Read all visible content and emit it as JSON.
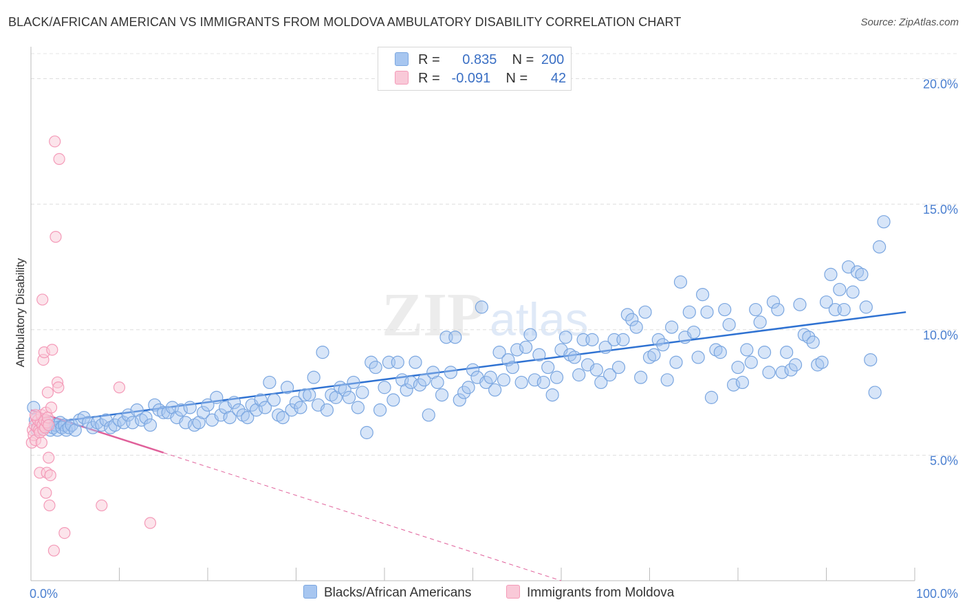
{
  "header": {
    "title": "BLACK/AFRICAN AMERICAN VS IMMIGRANTS FROM MOLDOVA AMBULATORY DISABILITY CORRELATION CHART",
    "source": "Source: ZipAtlas.com"
  },
  "legend": {
    "rows": [
      {
        "r_label": "R =",
        "r_value": "0.835",
        "n_label": "N =",
        "n_value": "200",
        "color": "#a7c6f0"
      },
      {
        "r_label": "R =",
        "r_value": "-0.091",
        "n_label": "N =",
        "n_value": "42",
        "color": "#f6b8cc"
      }
    ]
  },
  "bottom_legend": {
    "series1": "Blacks/African Americans",
    "series2": "Immigrants from Moldova"
  },
  "watermark": "ZIPatlas",
  "chart_data": {
    "type": "scatter",
    "title": "BLACK/AFRICAN AMERICAN VS IMMIGRANTS FROM MOLDOVA AMBULATORY DISABILITY CORRELATION CHART",
    "xlabel": "",
    "ylabel": "Ambulatory Disability",
    "x_tick_labels": [
      "0.0%",
      "100.0%"
    ],
    "y_tick_labels": [
      "5.0%",
      "10.0%",
      "15.0%",
      "20.0%"
    ],
    "xlim": [
      0,
      100
    ],
    "ylim": [
      0,
      20
    ],
    "grid": true,
    "series": [
      {
        "name": "Blacks/African Americans",
        "color": "#7aa6e0",
        "line_color": "#2f72d2",
        "trend": [
          [
            0,
            6.2
          ],
          [
            99,
            10.7
          ]
        ],
        "points": [
          [
            0.3,
            6.9
          ],
          [
            0.5,
            6.4
          ],
          [
            0.7,
            6.0
          ],
          [
            1.0,
            6.2
          ],
          [
            1.3,
            6.1
          ],
          [
            1.5,
            6.3
          ],
          [
            1.8,
            6.2
          ],
          [
            2.0,
            6.3
          ],
          [
            2.2,
            6.0
          ],
          [
            2.5,
            6.1
          ],
          [
            2.8,
            6.2
          ],
          [
            3.0,
            6.0
          ],
          [
            3.3,
            6.3
          ],
          [
            3.5,
            6.1
          ],
          [
            3.8,
            6.2
          ],
          [
            4.0,
            6.0
          ],
          [
            4.3,
            6.1
          ],
          [
            4.6,
            6.2
          ],
          [
            5.0,
            6.0
          ],
          [
            5.5,
            6.4
          ],
          [
            6.0,
            6.5
          ],
          [
            6.5,
            6.3
          ],
          [
            7.0,
            6.1
          ],
          [
            7.5,
            6.3
          ],
          [
            8.0,
            6.2
          ],
          [
            8.5,
            6.4
          ],
          [
            9.0,
            6.1
          ],
          [
            9.5,
            6.2
          ],
          [
            10.0,
            6.4
          ],
          [
            10.5,
            6.3
          ],
          [
            11.0,
            6.6
          ],
          [
            11.5,
            6.3
          ],
          [
            12.0,
            6.8
          ],
          [
            12.5,
            6.4
          ],
          [
            13.0,
            6.5
          ],
          [
            13.5,
            6.2
          ],
          [
            14.0,
            7.0
          ],
          [
            14.5,
            6.8
          ],
          [
            15.0,
            6.7
          ],
          [
            15.5,
            6.7
          ],
          [
            16.0,
            6.9
          ],
          [
            16.5,
            6.5
          ],
          [
            17.0,
            6.8
          ],
          [
            17.5,
            6.3
          ],
          [
            18.0,
            6.9
          ],
          [
            18.5,
            6.2
          ],
          [
            19.0,
            6.3
          ],
          [
            19.5,
            6.7
          ],
          [
            20.0,
            7.0
          ],
          [
            20.5,
            6.4
          ],
          [
            21.0,
            7.3
          ],
          [
            21.5,
            6.6
          ],
          [
            22.0,
            6.9
          ],
          [
            22.5,
            6.5
          ],
          [
            23.0,
            7.1
          ],
          [
            23.5,
            6.8
          ],
          [
            24.0,
            6.6
          ],
          [
            24.5,
            6.5
          ],
          [
            25.0,
            7.0
          ],
          [
            25.5,
            6.8
          ],
          [
            26.0,
            7.2
          ],
          [
            26.5,
            6.9
          ],
          [
            27.0,
            7.9
          ],
          [
            27.5,
            7.2
          ],
          [
            28.0,
            6.6
          ],
          [
            28.5,
            6.5
          ],
          [
            29.0,
            7.7
          ],
          [
            29.5,
            6.8
          ],
          [
            30.0,
            7.1
          ],
          [
            30.5,
            6.9
          ],
          [
            31.0,
            7.4
          ],
          [
            31.5,
            7.4
          ],
          [
            32.0,
            8.1
          ],
          [
            32.5,
            7.0
          ],
          [
            33.0,
            9.1
          ],
          [
            33.5,
            6.8
          ],
          [
            34.0,
            7.4
          ],
          [
            34.5,
            7.3
          ],
          [
            35.0,
            7.7
          ],
          [
            35.5,
            7.6
          ],
          [
            36.0,
            7.3
          ],
          [
            36.5,
            7.9
          ],
          [
            37.0,
            6.9
          ],
          [
            37.5,
            7.5
          ],
          [
            38.0,
            5.9
          ],
          [
            38.5,
            8.7
          ],
          [
            39.0,
            8.5
          ],
          [
            39.5,
            6.8
          ],
          [
            40.0,
            7.7
          ],
          [
            40.5,
            8.7
          ],
          [
            41.0,
            7.2
          ],
          [
            41.5,
            8.7
          ],
          [
            42.0,
            8.0
          ],
          [
            42.5,
            7.6
          ],
          [
            43.0,
            7.9
          ],
          [
            43.5,
            8.7
          ],
          [
            44.0,
            7.8
          ],
          [
            44.5,
            8.0
          ],
          [
            45.0,
            6.6
          ],
          [
            45.5,
            8.3
          ],
          [
            46.0,
            7.9
          ],
          [
            46.5,
            7.4
          ],
          [
            47.0,
            9.7
          ],
          [
            47.5,
            8.3
          ],
          [
            48.0,
            9.7
          ],
          [
            48.5,
            7.2
          ],
          [
            49.0,
            7.5
          ],
          [
            49.5,
            7.7
          ],
          [
            50.0,
            8.4
          ],
          [
            50.5,
            8.1
          ],
          [
            51.0,
            10.9
          ],
          [
            51.5,
            7.9
          ],
          [
            52.0,
            8.1
          ],
          [
            52.5,
            7.6
          ],
          [
            53.0,
            9.1
          ],
          [
            53.5,
            8.0
          ],
          [
            54.0,
            8.8
          ],
          [
            54.5,
            8.5
          ],
          [
            55.0,
            9.2
          ],
          [
            55.5,
            7.9
          ],
          [
            56.0,
            9.3
          ],
          [
            56.5,
            9.8
          ],
          [
            57.0,
            8.0
          ],
          [
            57.5,
            9.0
          ],
          [
            58.0,
            7.9
          ],
          [
            58.5,
            8.5
          ],
          [
            59.0,
            7.4
          ],
          [
            59.5,
            8.1
          ],
          [
            60.0,
            9.2
          ],
          [
            60.5,
            9.7
          ],
          [
            61.0,
            9.0
          ],
          [
            61.5,
            8.9
          ],
          [
            62.0,
            8.2
          ],
          [
            62.5,
            9.6
          ],
          [
            63.0,
            8.6
          ],
          [
            63.5,
            9.6
          ],
          [
            64.0,
            8.4
          ],
          [
            64.5,
            7.9
          ],
          [
            65.0,
            9.3
          ],
          [
            65.5,
            8.2
          ],
          [
            66.0,
            9.6
          ],
          [
            66.5,
            8.5
          ],
          [
            67.0,
            9.6
          ],
          [
            67.5,
            10.6
          ],
          [
            68.0,
            10.4
          ],
          [
            68.5,
            10.1
          ],
          [
            69.0,
            8.1
          ],
          [
            69.5,
            10.7
          ],
          [
            70.0,
            8.9
          ],
          [
            70.5,
            9.0
          ],
          [
            71.0,
            9.6
          ],
          [
            71.5,
            9.4
          ],
          [
            72.0,
            8.0
          ],
          [
            72.5,
            10.1
          ],
          [
            73.0,
            8.7
          ],
          [
            73.5,
            11.9
          ],
          [
            74.0,
            9.7
          ],
          [
            74.5,
            10.7
          ],
          [
            75.0,
            9.9
          ],
          [
            75.5,
            8.9
          ],
          [
            76.0,
            11.4
          ],
          [
            76.5,
            10.7
          ],
          [
            77.0,
            7.3
          ],
          [
            77.5,
            9.2
          ],
          [
            78.0,
            9.1
          ],
          [
            78.5,
            10.8
          ],
          [
            79.0,
            10.2
          ],
          [
            79.5,
            7.8
          ],
          [
            80.0,
            8.5
          ],
          [
            80.5,
            7.9
          ],
          [
            81.0,
            9.2
          ],
          [
            81.5,
            8.7
          ],
          [
            82.0,
            10.8
          ],
          [
            82.5,
            10.3
          ],
          [
            83.0,
            9.1
          ],
          [
            83.5,
            8.3
          ],
          [
            84.0,
            11.1
          ],
          [
            84.5,
            10.8
          ],
          [
            85.0,
            8.3
          ],
          [
            85.5,
            9.1
          ],
          [
            86.0,
            8.4
          ],
          [
            86.5,
            8.6
          ],
          [
            87.0,
            11.0
          ],
          [
            87.5,
            9.8
          ],
          [
            88.0,
            9.7
          ],
          [
            88.5,
            9.5
          ],
          [
            89.0,
            8.6
          ],
          [
            89.5,
            8.7
          ],
          [
            90.0,
            11.1
          ],
          [
            90.5,
            12.2
          ],
          [
            91.0,
            10.8
          ],
          [
            91.5,
            11.6
          ],
          [
            92.0,
            10.8
          ],
          [
            92.5,
            12.5
          ],
          [
            93.0,
            11.5
          ],
          [
            93.5,
            12.3
          ],
          [
            94.0,
            12.2
          ],
          [
            94.5,
            10.9
          ],
          [
            95.0,
            8.8
          ],
          [
            95.5,
            7.5
          ],
          [
            96.0,
            13.3
          ],
          [
            96.5,
            14.3
          ]
        ]
      },
      {
        "name": "Immigrants from Moldova",
        "color": "#f49ab8",
        "line_color": "#e0609a",
        "trend": [
          [
            0,
            6.8
          ],
          [
            15,
            5.1
          ]
        ],
        "trend_extension": [
          [
            15,
            5.1
          ],
          [
            60,
            0.0
          ]
        ],
        "points": [
          [
            0.1,
            5.5
          ],
          [
            0.2,
            6.0
          ],
          [
            0.3,
            5.8
          ],
          [
            0.4,
            6.2
          ],
          [
            0.5,
            5.6
          ],
          [
            0.6,
            6.5
          ],
          [
            0.7,
            6.1
          ],
          [
            0.8,
            6.4
          ],
          [
            0.9,
            6.0
          ],
          [
            1.0,
            5.9
          ],
          [
            1.1,
            6.3
          ],
          [
            1.2,
            6.6
          ],
          [
            1.3,
            6.2
          ],
          [
            1.4,
            6.0
          ],
          [
            1.5,
            6.4
          ],
          [
            1.6,
            6.1
          ],
          [
            1.7,
            6.7
          ],
          [
            1.8,
            6.3
          ],
          [
            1.9,
            6.5
          ],
          [
            2.0,
            6.2
          ],
          [
            0.5,
            6.6
          ],
          [
            1.0,
            4.3
          ],
          [
            1.2,
            5.5
          ],
          [
            1.3,
            11.2
          ],
          [
            1.4,
            8.8
          ],
          [
            1.5,
            9.1
          ],
          [
            1.7,
            3.5
          ],
          [
            1.8,
            4.3
          ],
          [
            1.9,
            7.5
          ],
          [
            2.0,
            4.9
          ],
          [
            2.1,
            3.0
          ],
          [
            2.2,
            4.2
          ],
          [
            2.3,
            6.9
          ],
          [
            2.4,
            9.2
          ],
          [
            2.6,
            1.2
          ],
          [
            2.7,
            17.5
          ],
          [
            2.8,
            13.7
          ],
          [
            3.0,
            7.9
          ],
          [
            3.1,
            7.7
          ],
          [
            3.2,
            16.8
          ],
          [
            3.8,
            1.9
          ],
          [
            8.0,
            3.0
          ],
          [
            10.0,
            7.7
          ],
          [
            13.5,
            2.3
          ]
        ]
      }
    ]
  }
}
